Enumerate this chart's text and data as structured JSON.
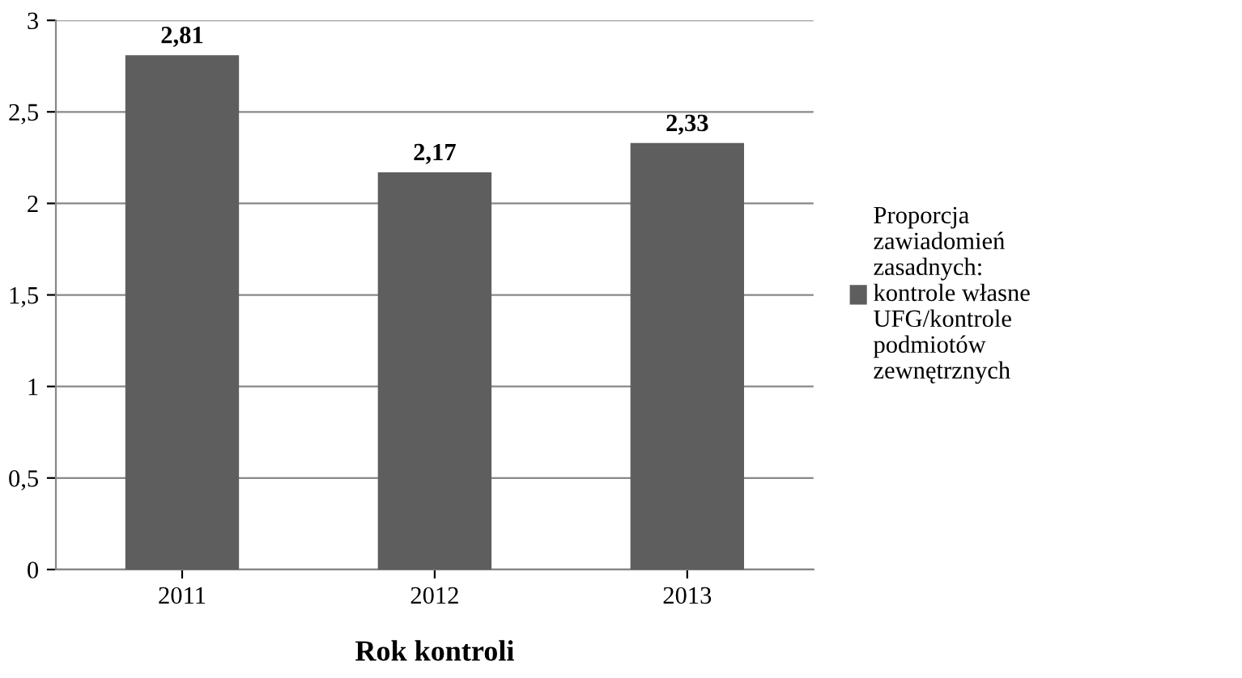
{
  "chart_data": {
    "type": "bar",
    "xlabel": "Rok kontroli",
    "categories": [
      "2011",
      "2012",
      "2013"
    ],
    "series": [
      {
        "name": "Proporcja zawiadomień zasadnych: kontrole własne UFG/kontrole podmiotów zewnętrznych",
        "color": "#5e5e5e",
        "values": [
          2.81,
          2.17,
          2.33
        ],
        "value_labels": [
          "2,81",
          "2,17",
          "2,33"
        ]
      }
    ],
    "ylim": [
      0,
      3
    ],
    "yticks": [
      0,
      {
        "value": 0.5,
        "label": "0,5"
      },
      1,
      {
        "value": 1.5,
        "label": "1,5"
      },
      2,
      {
        "value": 2.5,
        "label": "2,5"
      },
      3
    ],
    "grid": "y",
    "legend": "right"
  }
}
